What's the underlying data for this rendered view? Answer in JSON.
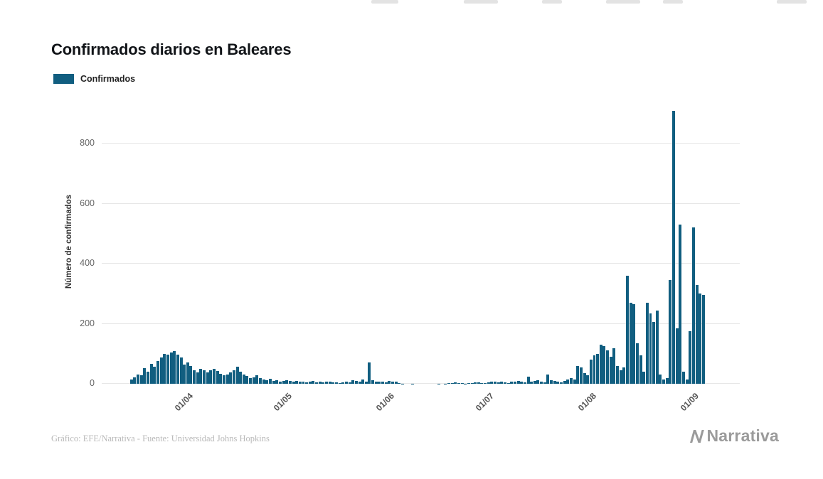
{
  "chart": {
    "title": "Confirmados diarios en Baleares",
    "legend_label": "Confirmados",
    "y_axis_label": "Número de confirmados",
    "source": "Gráfico: EFE/Narrativa - Fuente: Universidad Johns Hopkins",
    "brand": "Narrativa",
    "bar_color": "#115e80"
  },
  "chart_data": {
    "type": "bar",
    "title": "Confirmados diarios en Baleares",
    "series_name": "Confirmados",
    "xlabel": "",
    "ylabel": "Número de confirmados",
    "start_date": "2020-03-15",
    "y_ticks": [
      0,
      200,
      400,
      600,
      800
    ],
    "ylim": [
      0,
      947
    ],
    "grid": "horizontal",
    "legend_position": "top-left",
    "axis_offset_days": 9,
    "axis_total_days": 193,
    "x_ticks": [
      {
        "index": 17,
        "label": "01/04"
      },
      {
        "index": 47,
        "label": "01/05"
      },
      {
        "index": 78,
        "label": "01/06"
      },
      {
        "index": 108,
        "label": "01/07"
      },
      {
        "index": 139,
        "label": "01/08"
      },
      {
        "index": 170,
        "label": "01/09"
      }
    ],
    "values": [
      15,
      22,
      30,
      28,
      52,
      40,
      66,
      58,
      75,
      88,
      100,
      96,
      105,
      108,
      98,
      88,
      64,
      72,
      60,
      45,
      38,
      50,
      44,
      38,
      46,
      50,
      42,
      34,
      28,
      30,
      38,
      46,
      56,
      40,
      30,
      26,
      20,
      22,
      28,
      18,
      14,
      12,
      16,
      10,
      12,
      8,
      10,
      12,
      10,
      8,
      10,
      6,
      8,
      5,
      6,
      9,
      4,
      6,
      5,
      8,
      6,
      4,
      5,
      3,
      4,
      6,
      5,
      12,
      9,
      7,
      14,
      6,
      70,
      12,
      8,
      6,
      8,
      4,
      10,
      8,
      6,
      2,
      1,
      0,
      0,
      1,
      0,
      0,
      0,
      0,
      0,
      0,
      0,
      1,
      0,
      1,
      3,
      2,
      4,
      3,
      2,
      1,
      2,
      3,
      5,
      4,
      3,
      2,
      5,
      7,
      6,
      4,
      7,
      5,
      3,
      6,
      8,
      10,
      7,
      5,
      24,
      6,
      10,
      12,
      8,
      5,
      30,
      12,
      10,
      8,
      5,
      10,
      14,
      20,
      14,
      60,
      55,
      35,
      28,
      80,
      95,
      100,
      130,
      125,
      112,
      90,
      118,
      60,
      45,
      55,
      360,
      270,
      265,
      135,
      95,
      40,
      270,
      235,
      205,
      245,
      30,
      15,
      20,
      345,
      910,
      185,
      530,
      40,
      15,
      175,
      520,
      330,
      300,
      295
    ]
  }
}
